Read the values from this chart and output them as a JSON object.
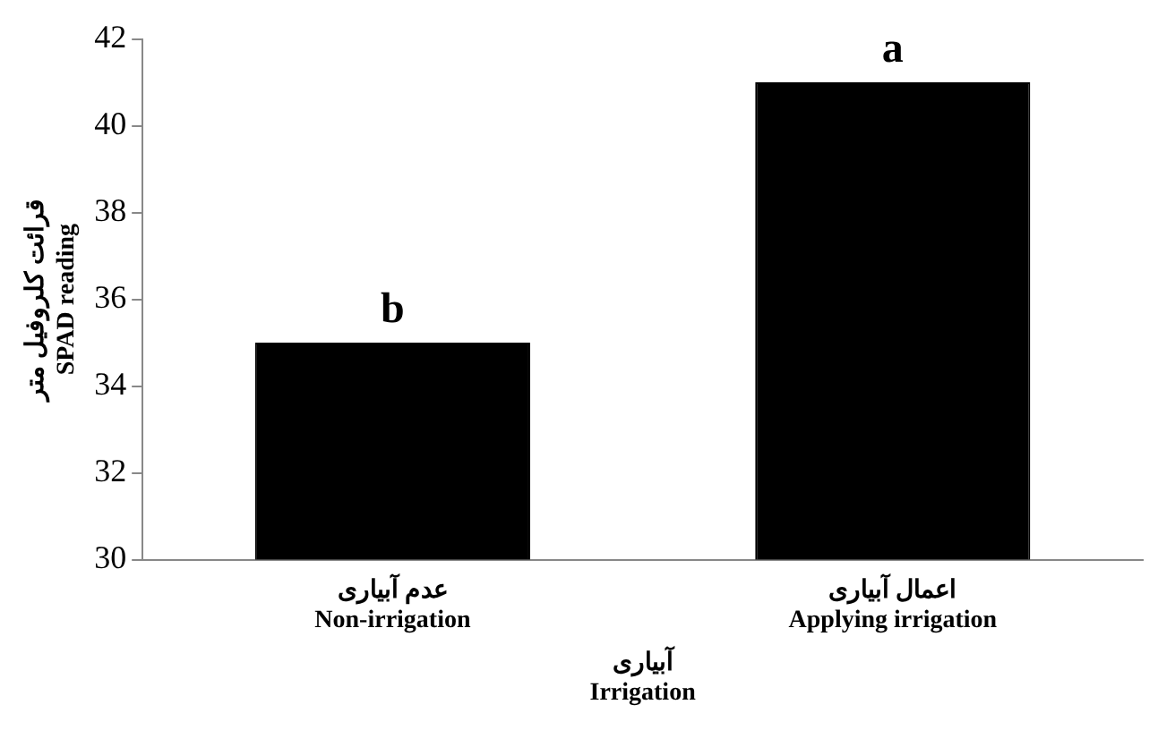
{
  "chart_data": {
    "type": "bar",
    "xlabel": "آبیاری\nIrrigation",
    "ylabel": "قرائت کلروفیل متر\nSPAD reading",
    "categories": [
      "عدم آبیاری\nNon-irrigation",
      "اعمال آبیاری\nApplying irrigation"
    ],
    "series": [
      {
        "color": "#000000",
        "values": [
          35,
          41
        ]
      }
    ],
    "ylim": [
      30,
      42
    ],
    "yticks": [
      30,
      32,
      34,
      36,
      38,
      40,
      42
    ],
    "grid": false,
    "legend": false,
    "annotations": [
      {
        "text": "b",
        "x": "عدم آبیاری\nNon-irrigation",
        "y": 35
      },
      {
        "text": "a",
        "x": "اعمال آبیاری\nApplying irrigation",
        "y": 41
      }
    ]
  }
}
